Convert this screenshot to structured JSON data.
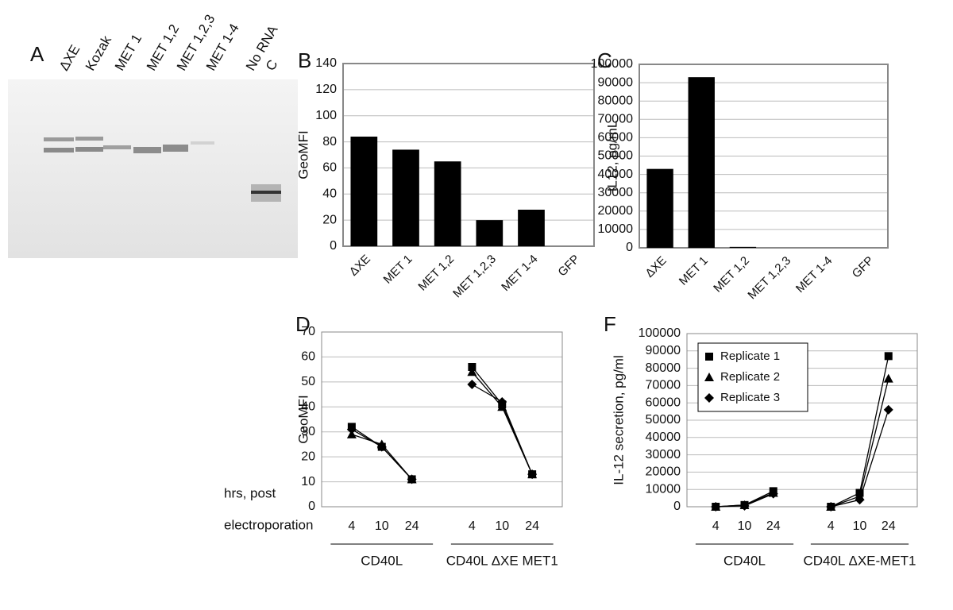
{
  "gel": {
    "panel_label": "A",
    "lanes": [
      "ΔXE",
      "Kozak",
      "MET 1",
      "MET 1,2",
      "MET 1,2,3",
      "MET 1-4",
      "No RNA",
      "C"
    ]
  },
  "chart_data": [
    {
      "type": "bar",
      "panel_label": "B",
      "ylabel": "GeoMFI",
      "categories": [
        "ΔXE",
        "MET 1",
        "MET 1,2",
        "MET 1,2,3",
        "MET 1-4",
        "GFP"
      ],
      "values": [
        84,
        74,
        65,
        20,
        28,
        0
      ],
      "color": "#000000",
      "ylim": [
        0,
        140
      ],
      "yticks": [
        0,
        20,
        40,
        60,
        80,
        100,
        120,
        140
      ],
      "grid": true
    },
    {
      "type": "bar",
      "panel_label": "C",
      "ylabel": "IL12, pg/mL",
      "categories": [
        "ΔXE",
        "MET 1",
        "MET 1,2",
        "MET 1,2,3",
        "MET 1-4",
        "GFP"
      ],
      "values": [
        43000,
        93000,
        500,
        0,
        0,
        0
      ],
      "color": "#000000",
      "ylim": [
        0,
        100000
      ],
      "yticks": [
        0,
        10000,
        20000,
        30000,
        40000,
        50000,
        60000,
        70000,
        80000,
        90000,
        100000
      ],
      "grid": true
    },
    {
      "type": "line",
      "panel_label": "D",
      "ylabel": "GeoMFI",
      "xlabel_lines": [
        "hrs, post",
        "electroporation"
      ],
      "categories": [
        "4",
        "10",
        "24",
        null,
        "4",
        "10",
        "24"
      ],
      "group_labels": [
        "CD40L",
        "CD40L ΔXE MET1"
      ],
      "series": [
        {
          "marker": "square",
          "color": "#000000",
          "values": [
            32,
            24,
            11,
            null,
            56,
            41,
            13
          ]
        },
        {
          "marker": "triangle",
          "color": "#000000",
          "values": [
            29,
            25,
            11,
            null,
            54,
            40,
            13
          ]
        },
        {
          "marker": "diamond",
          "color": "#000000",
          "values": [
            31,
            24,
            11,
            null,
            49,
            42,
            13
          ]
        }
      ],
      "ylim": [
        0,
        70
      ],
      "yticks": [
        0,
        10,
        20,
        30,
        40,
        50,
        60,
        70
      ],
      "grid": true
    },
    {
      "type": "line",
      "panel_label": "F",
      "ylabel": "IL-12 secretion, pg/ml",
      "categories": [
        "4",
        "10",
        "24",
        null,
        "4",
        "10",
        "24"
      ],
      "group_labels": [
        "CD40L",
        "CD40L ΔXE-MET1"
      ],
      "legend": "upper-left",
      "series": [
        {
          "name": "Replicate 1",
          "marker": "square",
          "color": "#000000",
          "values": [
            0,
            1000,
            9000,
            null,
            0,
            8000,
            87000
          ]
        },
        {
          "name": "Replicate 2",
          "marker": "triangle",
          "color": "#000000",
          "values": [
            0,
            1000,
            8000,
            null,
            0,
            6000,
            74000
          ]
        },
        {
          "name": "Replicate 3",
          "marker": "diamond",
          "color": "#000000",
          "values": [
            0,
            500,
            7500,
            null,
            0,
            4000,
            56000
          ]
        }
      ],
      "ylim": [
        0,
        100000
      ],
      "yticks": [
        0,
        10000,
        20000,
        30000,
        40000,
        50000,
        60000,
        70000,
        80000,
        90000,
        100000
      ],
      "grid": true
    }
  ]
}
